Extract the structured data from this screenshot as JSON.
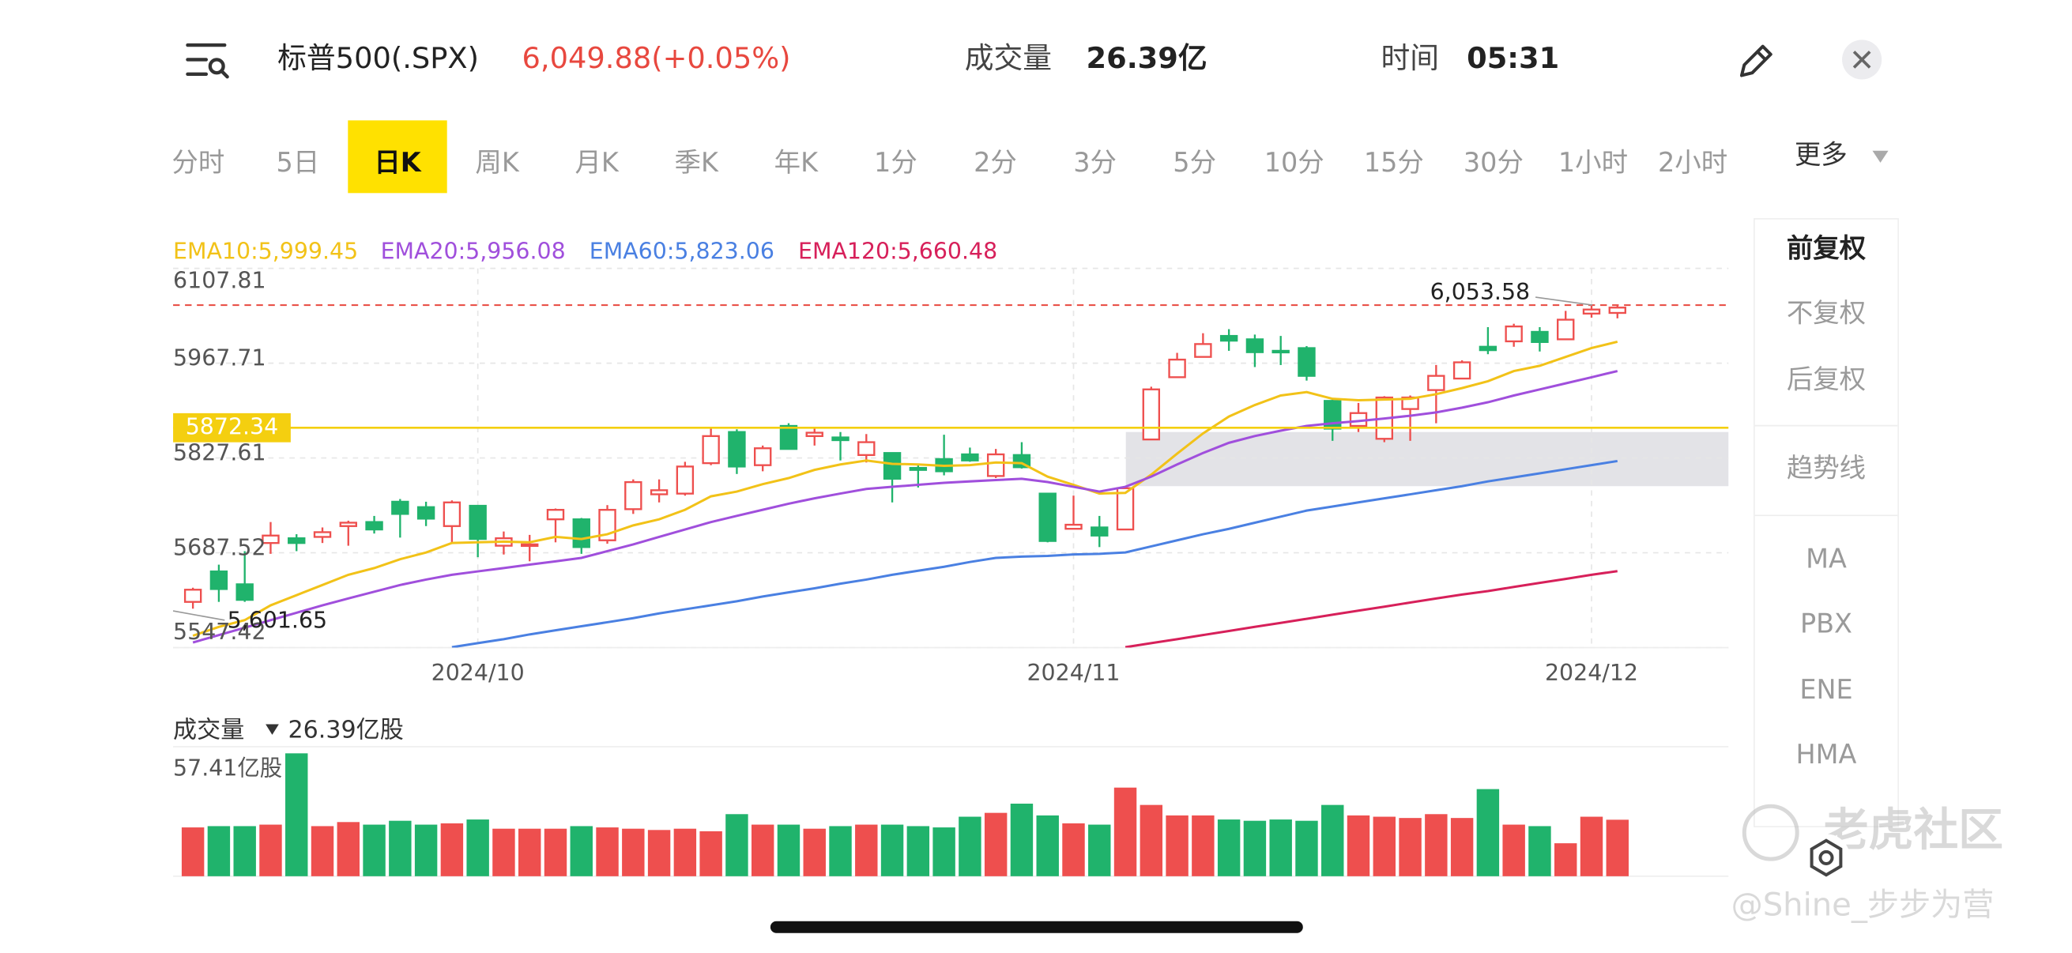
{
  "header": {
    "title": "标普500(.SPX)",
    "quote": "6,049.88(+0.05%)",
    "volume_label": "成交量",
    "volume": "26.39亿",
    "time_label": "时间",
    "time": "05:31"
  },
  "tabs": {
    "items": [
      "分时",
      "5日",
      "日K",
      "周K",
      "月K",
      "季K",
      "年K",
      "1分",
      "2分",
      "3分",
      "5分",
      "10分",
      "15分",
      "30分",
      "1小时",
      "2小时"
    ],
    "selected": 2,
    "more": "更多"
  },
  "side_menu": [
    "前复权",
    "不复权",
    "后复权",
    "趋势线",
    "MA",
    "PBX",
    "ENE",
    "HMA"
  ],
  "watermark": {
    "brand": "老虎社区",
    "author": "@Shine_步步为营"
  },
  "chart_data": [
    {
      "type": "candlestick",
      "categories": [
        null,
        null,
        null,
        null,
        null,
        null,
        null,
        null,
        null,
        null,
        null,
        "2024/10",
        null,
        null,
        null,
        null,
        null,
        null,
        null,
        null,
        null,
        null,
        null,
        null,
        null,
        null,
        null,
        null,
        null,
        null,
        null,
        null,
        null,
        null,
        "2024/11",
        null,
        null,
        null,
        null,
        null,
        null,
        null,
        null,
        null,
        null,
        null,
        null,
        null,
        null,
        null,
        null,
        null,
        null,
        null,
        "2024/12",
        null
      ],
      "open": [
        5615,
        5660,
        5641,
        5702,
        5709,
        5711,
        5727,
        5733,
        5763,
        5755,
        5727,
        5757,
        5698,
        5698,
        5737,
        5737,
        5706,
        5752,
        5774,
        5775,
        5820,
        5866,
        5817,
        5875,
        5860,
        5858,
        5832,
        5835,
        5813,
        5826,
        5833,
        5801,
        5832,
        5775,
        5723,
        5725,
        5722,
        5855,
        5947,
        5977,
        6008,
        6003,
        5986,
        5990,
        5912,
        5875,
        5856,
        5900,
        5928,
        5945,
        5992,
        6000,
        6014,
        6003,
        6041,
        6042
      ],
      "high": [
        5636,
        5670,
        5690,
        5733,
        5715,
        5725,
        5735,
        5742,
        5767,
        5763,
        5765,
        5757,
        5719,
        5714,
        5753,
        5739,
        5758,
        5796,
        5796,
        5822,
        5871,
        5870,
        5846,
        5879,
        5872,
        5866,
        5863,
        5835,
        5817,
        5862,
        5843,
        5841,
        5851,
        5775,
        5772,
        5742,
        5784,
        5933,
        5983,
        6012,
        6018,
        6010,
        6008,
        5993,
        5916,
        5909,
        5919,
        5920,
        5965,
        5972,
        6021,
        6026,
        6021,
        6045,
        6053,
        6053.58
      ],
      "low": [
        5605,
        5615,
        5615,
        5686,
        5690,
        5702,
        5698,
        5716,
        5710,
        5727,
        5703,
        5681,
        5685,
        5675,
        5703,
        5686,
        5701,
        5745,
        5762,
        5772,
        5817,
        5804,
        5808,
        5840,
        5846,
        5824,
        5821,
        5762,
        5784,
        5802,
        5822,
        5798,
        5812,
        5703,
        5723,
        5696,
        5722,
        5855,
        5947,
        5976,
        5986,
        5962,
        5965,
        5942,
        5853,
        5866,
        5851,
        5853,
        5879,
        5944,
        5981,
        5992,
        5985,
        6003,
        6035,
        6034
      ],
      "close": [
        5633,
        5634,
        5618,
        5713,
        5702,
        5718,
        5732,
        5722,
        5745,
        5738,
        5762,
        5708,
        5709,
        5700,
        5751,
        5696,
        5751,
        5792,
        5780,
        5815,
        5860,
        5815,
        5842,
        5841,
        5865,
        5854,
        5851,
        5797,
        5810,
        5808,
        5824,
        5833,
        5814,
        5705,
        5729,
        5713,
        5783,
        5929,
        5973,
        5996,
        6001,
        5984,
        5985,
        5949,
        5871,
        5894,
        5917,
        5917,
        5949,
        5969,
        5987,
        6022,
        5999,
        6032,
        6047,
        6049.88
      ],
      "up_color": "#ee4f4e",
      "down_color": "#20b36c",
      "series": [
        {
          "name": "EMA10:5,999.45",
          "color": "#f2c218",
          "values": [
            5565,
            5578,
            5588,
            5610,
            5625,
            5640,
            5655,
            5665,
            5678,
            5688,
            5702,
            5703,
            5704,
            5703,
            5711,
            5708,
            5715,
            5728,
            5737,
            5751,
            5771,
            5778,
            5789,
            5798,
            5810,
            5818,
            5824,
            5819,
            5818,
            5816,
            5817,
            5821,
            5820,
            5800,
            5788,
            5775,
            5776,
            5803,
            5834,
            5864,
            5889,
            5906,
            5920,
            5925,
            5915,
            5913,
            5914,
            5915,
            5922,
            5931,
            5941,
            5956,
            5964,
            5977,
            5990,
            5999.45
          ]
        },
        {
          "name": "EMA20:5,956.08",
          "color": "#a04fdc",
          "values": [
            5555,
            5566,
            5577,
            5588,
            5599,
            5610,
            5620,
            5630,
            5640,
            5648,
            5655,
            5660,
            5665,
            5670,
            5675,
            5680,
            5690,
            5700,
            5711,
            5722,
            5733,
            5742,
            5751,
            5760,
            5768,
            5775,
            5782,
            5785,
            5788,
            5791,
            5793,
            5795,
            5797,
            5792,
            5785,
            5778,
            5785,
            5800,
            5818,
            5835,
            5850,
            5860,
            5868,
            5875,
            5879,
            5882,
            5886,
            5890,
            5895,
            5902,
            5910,
            5920,
            5929,
            5938,
            5947,
            5956.08
          ]
        },
        {
          "name": "EMA60:5,823.06",
          "color": "#4a80e2",
          "values": [
            null,
            null,
            null,
            null,
            null,
            null,
            null,
            null,
            null,
            null,
            5548,
            5554,
            5560,
            5567,
            5573,
            5579,
            5585,
            5591,
            5598,
            5604,
            5610,
            5616,
            5623,
            5629,
            5635,
            5642,
            5648,
            5655,
            5661,
            5667,
            5674,
            5680,
            5682,
            5683,
            5685,
            5686,
            5688,
            5697,
            5706,
            5715,
            5723,
            5732,
            5741,
            5750,
            5756,
            5762,
            5768,
            5774,
            5780,
            5786,
            5793,
            5799,
            5805,
            5811,
            5817,
            5823.06
          ]
        },
        {
          "name": "EMA120:5,660.48",
          "color": "#d7205a",
          "values": [
            null,
            null,
            null,
            null,
            null,
            null,
            null,
            null,
            null,
            null,
            null,
            null,
            null,
            null,
            null,
            null,
            null,
            null,
            null,
            null,
            null,
            null,
            null,
            null,
            null,
            null,
            null,
            null,
            null,
            null,
            null,
            null,
            null,
            null,
            null,
            null,
            5548,
            5554,
            5560,
            5566,
            5572,
            5578,
            5584,
            5590,
            5596,
            5602,
            5608,
            5614,
            5620,
            5626,
            5631,
            5637,
            5643,
            5649,
            5655,
            5660.48
          ]
        }
      ],
      "ylim": [
        5547.42,
        6107.81
      ],
      "yticks": [
        6107.81,
        5967.71,
        5827.61,
        5687.52,
        5547.42
      ],
      "grid": true,
      "price_line": 5872.34,
      "price_line_color": "#f4cf10",
      "high_marker": {
        "value": 6053.58,
        "label": "6,053.58"
      },
      "low_marker": {
        "value": 5601.65,
        "label": "5,601.65"
      },
      "zone": [
        5786,
        5866
      ]
    },
    {
      "type": "bar",
      "title": "成交量",
      "value_label": "26.39亿股",
      "values": [
        22.8,
        23.4,
        23.4,
        24.1,
        57.41,
        23.4,
        25.3,
        24.1,
        25.9,
        24.1,
        24.7,
        26.5,
        22.2,
        22.2,
        22.2,
        23.4,
        22.8,
        22.2,
        21.6,
        22.2,
        21.0,
        29.0,
        24.1,
        24.1,
        22.2,
        23.4,
        24.1,
        24.1,
        23.4,
        22.8,
        27.8,
        29.6,
        33.9,
        28.4,
        24.7,
        24.1,
        41.4,
        33.3,
        28.4,
        28.4,
        26.5,
        25.9,
        26.5,
        25.9,
        33.3,
        28.4,
        27.8,
        27.2,
        29.0,
        27.2,
        40.7,
        24.1,
        23.4,
        15.4,
        27.8,
        26.39
      ],
      "ylim": [
        0,
        57.41
      ],
      "yticks": [
        {
          "value": 57.41,
          "label": "57.41亿股"
        }
      ]
    }
  ]
}
